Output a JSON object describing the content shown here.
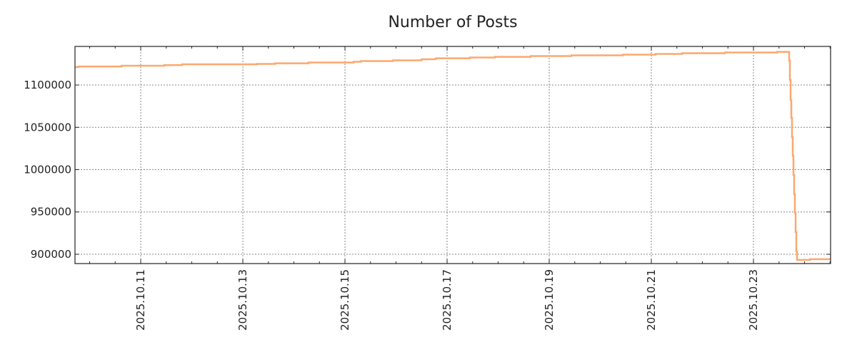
{
  "chart_data": {
    "type": "line",
    "title": "Number of Posts",
    "xlabel": "",
    "ylabel": "",
    "x_unit": "day of October 2025",
    "xlim": [
      9.713,
      24.51
    ],
    "ylim": [
      889000,
      1145600
    ],
    "grid": true,
    "legend": "none",
    "line_color": "#fca86e",
    "step": "post",
    "x_ticks": [
      {
        "value": 11,
        "label": "2025.10.11"
      },
      {
        "value": 13,
        "label": "2025.10.13"
      },
      {
        "value": 15,
        "label": "2025.10.15"
      },
      {
        "value": 17,
        "label": "2025.10.17"
      },
      {
        "value": 19,
        "label": "2025.10.19"
      },
      {
        "value": 21,
        "label": "2025.10.21"
      },
      {
        "value": 23,
        "label": "2025.10.23"
      }
    ],
    "y_ticks": [
      {
        "value": 900000,
        "label": "900000"
      },
      {
        "value": 950000,
        "label": "950000"
      },
      {
        "value": 1000000,
        "label": "1000000"
      },
      {
        "value": 1050000,
        "label": "1050000"
      },
      {
        "value": 1100000,
        "label": "1100000"
      }
    ],
    "series": [
      {
        "name": "Number of Posts",
        "x": [
          9.713,
          9.783,
          10.622,
          11.462,
          11.811,
          13.28,
          13.629,
          14.287,
          15.168,
          15.308,
          15.937,
          16.497,
          16.776,
          17.448,
          17.937,
          18.636,
          19.434,
          20.441,
          21.084,
          21.601,
          22.441,
          23.462,
          23.699,
          23.713,
          23.727,
          23.741,
          23.755,
          23.769,
          23.783,
          23.797,
          23.811,
          23.825,
          23.839,
          23.853,
          23.867,
          24.105,
          24.51
        ],
        "y": [
          1121100,
          1121900,
          1122800,
          1123600,
          1124500,
          1124900,
          1125700,
          1126600,
          1127400,
          1128300,
          1129100,
          1130400,
          1131600,
          1132500,
          1133300,
          1134200,
          1135000,
          1135900,
          1136700,
          1137600,
          1138400,
          1139200,
          1128700,
          1105900,
          1082300,
          1061200,
          1038400,
          1016500,
          993700,
          970900,
          949000,
          926200,
          903400,
          893300,
          893300,
          894200,
          894200
        ]
      }
    ]
  }
}
